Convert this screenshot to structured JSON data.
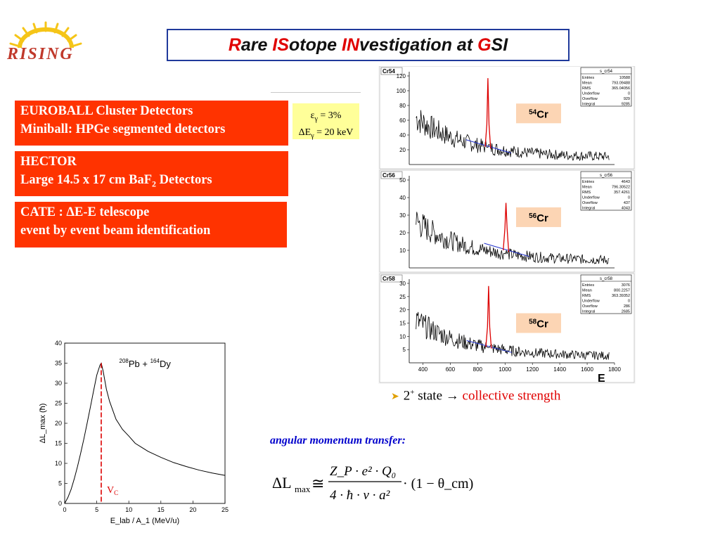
{
  "logo": {
    "text": "RISING",
    "sun_color": "#f5c518"
  },
  "title": {
    "parts": [
      {
        "t": "R",
        "hl": true
      },
      {
        "t": "are ",
        "hl": false
      },
      {
        "t": "IS",
        "hl": true
      },
      {
        "t": "otope ",
        "hl": false
      },
      {
        "t": "IN",
        "hl": true
      },
      {
        "t": "vestigation at ",
        "hl": false
      },
      {
        "t": "G",
        "hl": true
      },
      {
        "t": "SI",
        "hl": false
      }
    ]
  },
  "boxes": {
    "b1": {
      "line1": "EUROBALL Cluster Detectors",
      "line2": "Miniball: HPGe segmented detectors"
    },
    "b2": {
      "line1": "HECTOR",
      "line2_a": "Large 14.5 x 17 cm BaF",
      "line2_sub": "2",
      "line2_b": " Detectors"
    },
    "b3": {
      "line1": "CATE : ΔE-E telescope",
      "line2": "event by event beam identification"
    }
  },
  "efficiency": {
    "line1": "ε",
    "line1_sub": "γ",
    "line1_rest": " = 3%",
    "line2": "ΔE",
    "line2_sub": "γ",
    "line2_rest": " = 20 keV"
  },
  "bullet": {
    "text_a": "2",
    "text_sup": "+",
    "text_b": " state → ",
    "text_red": "collective strength"
  },
  "amt_label": "angular momentum transfer:",
  "formula": {
    "lhs": "ΔL",
    "lhs_sub": "max",
    "approx": "≅",
    "num": "Z_P · e² · Q₀",
    "den": "4 · ħ · v · a²",
    "tail": "· (1 − θ_cm)"
  },
  "chart_data": [
    {
      "type": "line",
      "title": "Cr54",
      "label": "54Cr",
      "box_title": "s_cr54",
      "ylim": [
        0,
        120
      ],
      "yticks": [
        20,
        40,
        60,
        80,
        100,
        120
      ],
      "xlim": [
        300,
        1800
      ],
      "peak_x": 875,
      "peak_y": 117,
      "stats": {
        "Entries": "10588",
        "Mean": "793.09488",
        "RMS": "365.04056",
        "Underflow": "0",
        "Overflow": "929",
        "Integral": "9285"
      }
    },
    {
      "type": "line",
      "title": "Cr56",
      "label": "56Cr",
      "box_title": "s_cr56",
      "ylim": [
        0,
        50
      ],
      "yticks": [
        10,
        20,
        30,
        40,
        50
      ],
      "xlim": [
        300,
        1800
      ],
      "peak_x": 1007,
      "peak_y": 37,
      "stats": {
        "Entries": "4643",
        "Mean": "796.30522",
        "RMS": "357.4261",
        "Underflow": "0",
        "Overflow": "437",
        "Integral": "4043"
      }
    },
    {
      "type": "line",
      "title": "Cr58",
      "label": "58Cr",
      "box_title": "s_cr58",
      "ylim": [
        0,
        30
      ],
      "yticks": [
        5,
        10,
        15,
        20,
        25,
        30
      ],
      "xlim": [
        300,
        1800
      ],
      "xticks": [
        400,
        600,
        800,
        1000,
        1200,
        1400,
        1600,
        1800
      ],
      "xlabel": "E",
      "peak_x": 880,
      "peak_y": 29,
      "stats": {
        "Entries": "3076",
        "Mean": "800.2257",
        "RMS": "363.39352",
        "Underflow": "0",
        "Overflow": "286",
        "Integral": "2685"
      }
    },
    {
      "type": "line",
      "title": "",
      "reaction": {
        "a": "208",
        "an": "Pb",
        "b": "164",
        "bn": "Dy"
      },
      "xlabel": "E_lab / A_1 (MeV/u)",
      "ylabel": "ΔL_max (ħ)",
      "xlim": [
        0,
        25
      ],
      "ylim": [
        0,
        40
      ],
      "xticks": [
        0,
        5,
        10,
        15,
        20,
        25
      ],
      "yticks": [
        0,
        5,
        10,
        15,
        20,
        25,
        30,
        35,
        40
      ],
      "x": [
        0,
        0.5,
        1,
        1.5,
        2,
        2.5,
        3,
        3.5,
        4,
        4.5,
        5,
        5.5,
        5.7,
        6,
        6.5,
        7,
        8,
        9,
        10,
        11,
        12,
        13,
        15,
        17,
        19,
        21,
        23,
        25
      ],
      "y": [
        0,
        1.5,
        3.5,
        6.2,
        9.2,
        12.6,
        16.2,
        20,
        24,
        28,
        32,
        34.5,
        35,
        33,
        28.5,
        25.5,
        21,
        18.5,
        16.8,
        15,
        14,
        13,
        11.5,
        10.2,
        9.2,
        8.3,
        7.6,
        7
      ],
      "marker": {
        "x": 5.7,
        "label": "V",
        "label_sub": "C"
      }
    }
  ]
}
